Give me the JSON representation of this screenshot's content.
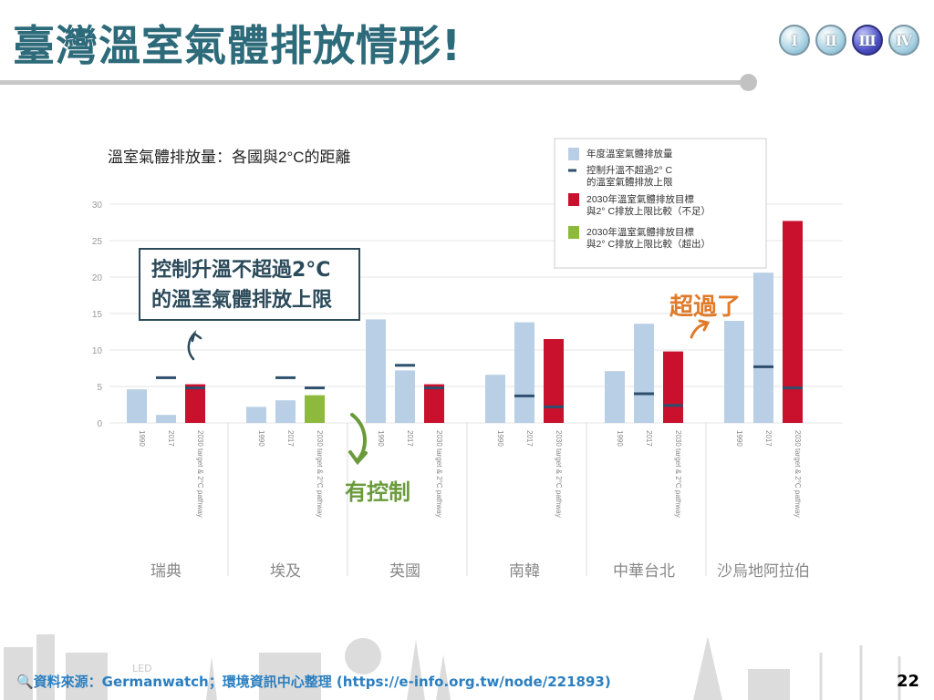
{
  "slide": {
    "title": "臺灣溫室氣體排放情形!",
    "nav": [
      "Ⅰ",
      "Ⅱ",
      "Ⅲ",
      "Ⅳ"
    ],
    "nav_active_index": 2,
    "source": "🔍資料來源：Germanwatch；環境資訊中心整理 (https://e-info.org.tw/node/221893)",
    "page_number": "22",
    "faint_label": "LED"
  },
  "annotations": {
    "callout_line1": "控制升溫不超過2°C",
    "callout_line2": "的溫室氣體排放上限",
    "green_note": "有控制",
    "orange_note": "超過了"
  },
  "colors": {
    "title": "#2d6a7a",
    "annual": "#b8cfe6",
    "limit": "#2e4f6e",
    "target_short": "#c9102c",
    "target_over": "#8dba3c",
    "green_note": "#6a9b3b",
    "orange_note": "#e07b2a",
    "source_text": "#2b7fc0"
  },
  "chart_data": {
    "type": "bar",
    "title": "溫室氣體排放量：各國與2°C的距離",
    "ylim": [
      0,
      30
    ],
    "yticks": [
      "0",
      "5",
      "10",
      "15",
      "20",
      "25",
      "30"
    ],
    "bar_categories": [
      "1990",
      "2017",
      "2030 target & 2°C pathway"
    ],
    "legend": [
      {
        "label": "年度溫室氣體排放量",
        "color": "#b8cfe6",
        "kind": "box"
      },
      {
        "label": "控制升溫不超過2° C的溫室氣體排放上限",
        "color": "#2e4f6e",
        "kind": "dash"
      },
      {
        "label": "2030年溫室氣體排放目標與2° C排放上限比較（不足）",
        "color": "#c9102c",
        "kind": "box"
      },
      {
        "label": "2030年溫室氣體排放目標與2° C排放上限比較（超出）",
        "color": "#8dba3c",
        "kind": "box"
      }
    ],
    "countries": [
      {
        "name": "瑞典",
        "bars": [
          {
            "value": 4.6,
            "color": "#b8cfe6"
          },
          {
            "value": 1.1,
            "color": "#b8cfe6",
            "limit": 6.2
          },
          {
            "value": 5.3,
            "color": "#c9102c",
            "limit": 4.8
          }
        ]
      },
      {
        "name": "埃及",
        "bars": [
          {
            "value": 2.2,
            "color": "#b8cfe6"
          },
          {
            "value": 3.1,
            "color": "#b8cfe6",
            "limit": 6.2
          },
          {
            "value": 3.8,
            "color": "#8dba3c",
            "limit": 4.8
          }
        ]
      },
      {
        "name": "英國",
        "bars": [
          {
            "value": 14.2,
            "color": "#b8cfe6"
          },
          {
            "value": 7.2,
            "color": "#b8cfe6",
            "limit": 7.9
          },
          {
            "value": 5.3,
            "color": "#c9102c",
            "limit": 4.8
          }
        ]
      },
      {
        "name": "南韓",
        "bars": [
          {
            "value": 6.6,
            "color": "#b8cfe6"
          },
          {
            "value": 13.8,
            "color": "#b8cfe6",
            "limit": 3.7
          },
          {
            "value": 11.5,
            "color": "#c9102c",
            "limit": 2.2
          }
        ]
      },
      {
        "name": "中華台北",
        "bars": [
          {
            "value": 7.1,
            "color": "#b8cfe6"
          },
          {
            "value": 13.6,
            "color": "#b8cfe6",
            "limit": 4.0
          },
          {
            "value": 9.8,
            "color": "#c9102c",
            "limit": 2.4
          }
        ]
      },
      {
        "name": "沙烏地阿拉伯",
        "bars": [
          {
            "value": 14.0,
            "color": "#b8cfe6"
          },
          {
            "value": 20.6,
            "color": "#b8cfe6",
            "limit": 7.7
          },
          {
            "value": 27.7,
            "color": "#c9102c",
            "limit": 4.8
          }
        ]
      }
    ]
  }
}
